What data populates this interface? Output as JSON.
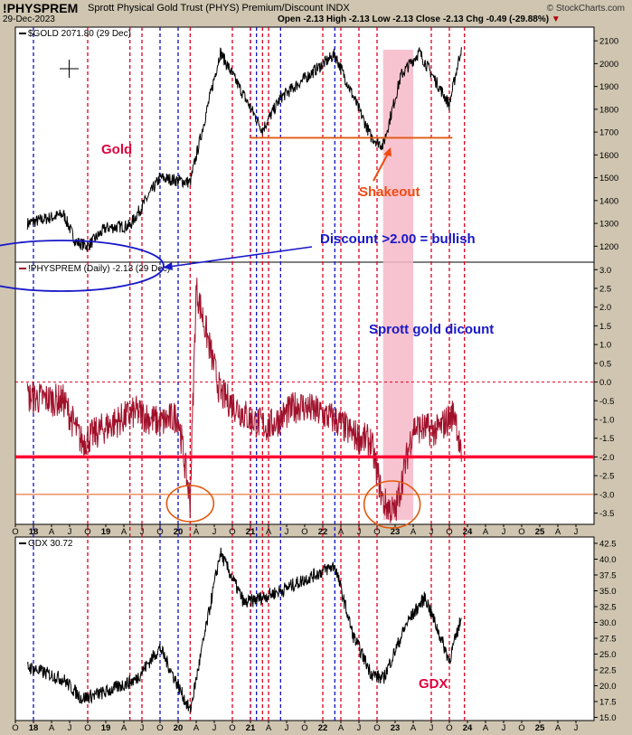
{
  "header": {
    "symbol": "!PHYSPREM",
    "description": "Sprott Physical Gold Trust (PHYS) Premium/Discount INDX",
    "date": "29-Dec-2023",
    "ohlc": "Open -2.13  High -2.13  Low -2.13  Close -2.13  Chg -0.49 (-29.88%)",
    "watermark": "© StockCharts.com"
  },
  "colors": {
    "gold": "#000000",
    "premium": "#a0102a",
    "red_line": "#ff0033",
    "orange_line": "#e05a10",
    "shade": "#f7b8c8",
    "blue_dash": "#1010c0",
    "red_dash": "#e00020",
    "annot_red": "#e0003c",
    "annot_blue": "#1818c8",
    "annot_orange": "#f04a10"
  },
  "chart_data": [
    {
      "type": "line",
      "legend": "$GOLD 2071.80 (29 Dec)",
      "ylim": [
        1130,
        2160
      ],
      "yticks": [
        1200,
        1300,
        1400,
        1500,
        1600,
        1700,
        1800,
        1900,
        2000,
        2100
      ],
      "x": [
        "2017-12",
        "2018-06",
        "2018-08",
        "2018-10",
        "2019-01",
        "2019-05",
        "2019-10",
        "2020-03",
        "2020-08",
        "2021-03",
        "2021-06",
        "2022-03",
        "2022-09",
        "2022-11",
        "2023-02",
        "2023-05",
        "2023-10",
        "2023-12"
      ],
      "values": [
        1300,
        1340,
        1220,
        1200,
        1280,
        1290,
        1500,
        1480,
        2050,
        1710,
        1850,
        2040,
        1680,
        1640,
        1950,
        2050,
        1820,
        2072
      ],
      "support_line": 1675
    },
    {
      "type": "line",
      "legend": "!PHYSPREM (Daily) -2.13 (29 Dec)",
      "ylim": [
        -3.8,
        3.2
      ],
      "yticks": [
        3.0,
        2.5,
        2.0,
        1.5,
        1.0,
        0.5,
        0.0,
        -0.5,
        -1.0,
        -1.5,
        -2.0,
        -2.5,
        -3.0,
        -3.5
      ],
      "x": [
        "2017-12",
        "2018-06",
        "2018-09",
        "2019-01",
        "2019-06",
        "2019-10",
        "2020-01",
        "2020-03",
        "2020-04",
        "2020-08",
        "2021-01",
        "2021-04",
        "2021-09",
        "2022-03",
        "2022-06",
        "2022-09",
        "2022-11",
        "2023-01",
        "2023-04",
        "2023-08",
        "2023-11",
        "2023-12"
      ],
      "values": [
        -0.4,
        -0.5,
        -1.6,
        -1.2,
        -0.8,
        -1.1,
        -0.9,
        -3.2,
        2.5,
        -0.3,
        -1.0,
        -1.2,
        -0.6,
        -1.0,
        -1.4,
        -1.6,
        -3.2,
        -3.5,
        -1.2,
        -1.3,
        -0.8,
        -2.13
      ],
      "ref_lines": [
        0.0,
        -2.0,
        -3.0
      ]
    },
    {
      "type": "line",
      "legend": "GDX 30.72",
      "ylim": [
        14.5,
        43.5
      ],
      "yticks": [
        42.5,
        40.0,
        37.5,
        35.0,
        32.5,
        30.0,
        27.5,
        25.0,
        22.5,
        20.0,
        17.5,
        15.0
      ],
      "x": [
        "2017-12",
        "2018-06",
        "2018-09",
        "2019-01",
        "2019-06",
        "2019-10",
        "2020-03",
        "2020-08",
        "2020-12",
        "2021-06",
        "2022-03",
        "2022-06",
        "2022-09",
        "2022-11",
        "2023-03",
        "2023-06",
        "2023-10",
        "2023-12"
      ],
      "values": [
        23,
        21,
        18,
        19,
        21,
        26,
        16,
        41,
        33,
        35,
        39,
        28,
        22,
        21,
        30,
        34,
        24,
        30.72
      ]
    }
  ],
  "x_axis_labels": [
    "O",
    "18",
    "A",
    "J",
    "O",
    "19",
    "A",
    "J",
    "O",
    "20",
    "A",
    "J",
    "O",
    "21",
    "A",
    "J",
    "O",
    "22",
    "A",
    "J",
    "O",
    "23",
    "A",
    "J",
    "O",
    "24",
    "A",
    "J",
    "O",
    "25",
    "A",
    "J"
  ],
  "annotations": {
    "gold": "Gold",
    "shakeout": "Shakeout",
    "discount": "Discount >2.00 = bullish",
    "sprott": "Sprott gold dicount",
    "gdx": "GDX"
  }
}
